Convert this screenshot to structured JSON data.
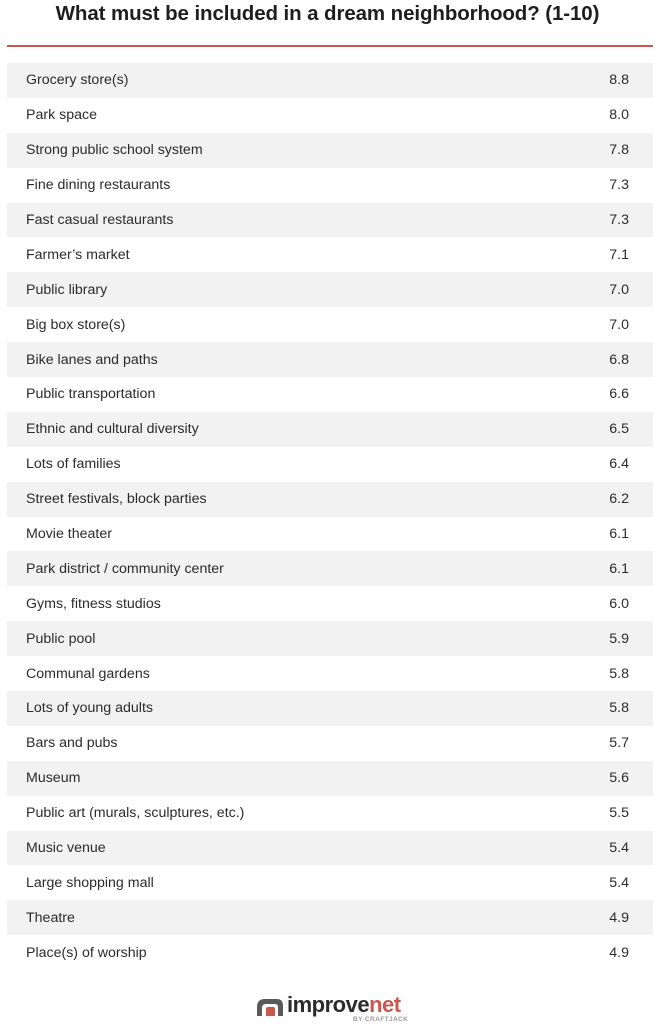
{
  "chart_data": {
    "type": "table",
    "title": "What must be included in a dream neighborhood? (1-10)",
    "rows": [
      {
        "label": "Grocery store(s)",
        "value": "8.8"
      },
      {
        "label": "Park space",
        "value": "8.0"
      },
      {
        "label": "Strong public school system",
        "value": "7.8"
      },
      {
        "label": "Fine dining restaurants",
        "value": "7.3"
      },
      {
        "label": "Fast casual restaurants",
        "value": "7.3"
      },
      {
        "label": "Farmer’s market",
        "value": "7.1"
      },
      {
        "label": "Public library",
        "value": "7.0"
      },
      {
        "label": "Big box store(s)",
        "value": "7.0"
      },
      {
        "label": "Bike lanes and paths",
        "value": "6.8"
      },
      {
        "label": "Public transportation",
        "value": "6.6"
      },
      {
        "label": "Ethnic and cultural diversity",
        "value": "6.5"
      },
      {
        "label": "Lots of families",
        "value": "6.4"
      },
      {
        "label": "Street festivals, block parties",
        "value": "6.2"
      },
      {
        "label": "Movie theater",
        "value": "6.1"
      },
      {
        "label": "Park district / community center",
        "value": "6.1"
      },
      {
        "label": "Gyms, fitness studios",
        "value": "6.0"
      },
      {
        "label": "Public pool",
        "value": "5.9"
      },
      {
        "label": "Communal gardens",
        "value": "5.8"
      },
      {
        "label": "Lots of young adults",
        "value": "5.8"
      },
      {
        "label": "Bars and pubs",
        "value": "5.7"
      },
      {
        "label": "Museum",
        "value": "5.6"
      },
      {
        "label": "Public art (murals, sculptures, etc.)",
        "value": "5.5"
      },
      {
        "label": "Music venue",
        "value": "5.4"
      },
      {
        "label": "Large shopping mall",
        "value": "5.4"
      },
      {
        "label": "Theatre",
        "value": "4.9"
      },
      {
        "label": "Place(s) of worship",
        "value": "4.9"
      }
    ]
  },
  "footer": {
    "logo_main": "improve",
    "logo_accent": "net",
    "logo_by": "BY CRAFTJACK",
    "icon": "house-roof-icon"
  },
  "colors": {
    "accent": "#c9564f",
    "row_shade": "#f2f2f2",
    "text": "#2b2b2b"
  }
}
